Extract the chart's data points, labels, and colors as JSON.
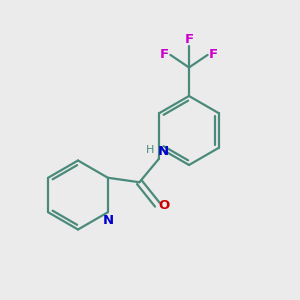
{
  "background_color": "#ebebeb",
  "bond_color": "#4a8a7a",
  "nitrogen_color": "#0000cc",
  "oxygen_color": "#cc0000",
  "fluorine_color": "#cc00cc",
  "line_width": 1.6,
  "figsize": [
    3.0,
    3.0
  ],
  "dpi": 100,
  "xlim": [
    0,
    10
  ],
  "ylim": [
    0,
    10
  ]
}
